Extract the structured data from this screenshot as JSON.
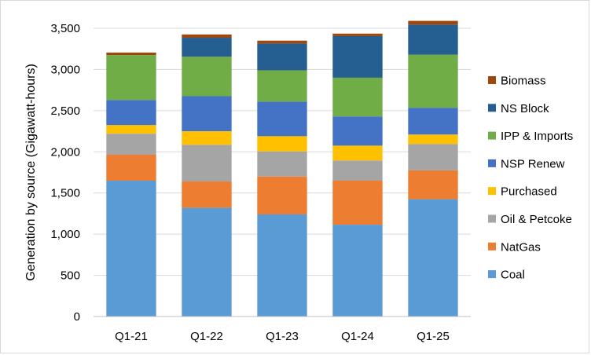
{
  "chart_data": {
    "type": "bar",
    "stacked": true,
    "title": "",
    "xlabel": "",
    "ylabel": "Generation by source (Gigawatt-hours)",
    "ylim": [
      0,
      3500
    ],
    "yticks": [
      0,
      500,
      1000,
      1500,
      2000,
      2500,
      3000,
      3500
    ],
    "ytick_labels": [
      "0",
      "500",
      "1,000",
      "1,500",
      "2,000",
      "2,500",
      "3,000",
      "3,500"
    ],
    "grid": true,
    "legend_position": "right",
    "categories": [
      "Q1-21",
      "Q1-22",
      "Q1-23",
      "Q1-24",
      "Q1-25"
    ],
    "series": [
      {
        "name": "Coal",
        "color": "#5B9BD5",
        "values": [
          1650,
          1320,
          1240,
          1115,
          1425
        ]
      },
      {
        "name": "NatGas",
        "color": "#ED7D31",
        "values": [
          315,
          320,
          460,
          535,
          350
        ]
      },
      {
        "name": "Oil & Petcoke",
        "color": "#A5A5A5",
        "values": [
          255,
          445,
          305,
          245,
          320
        ]
      },
      {
        "name": "Purchased",
        "color": "#FFC000",
        "values": [
          105,
          165,
          185,
          180,
          115
        ]
      },
      {
        "name": "NSP Renew",
        "color": "#4472C4",
        "values": [
          305,
          425,
          420,
          355,
          325
        ]
      },
      {
        "name": "IPP & Imports",
        "color": "#70AD47",
        "values": [
          545,
          480,
          380,
          470,
          645
        ]
      },
      {
        "name": "NS Block",
        "color": "#255E91",
        "values": [
          0,
          230,
          325,
          505,
          365
        ]
      },
      {
        "name": "Biomass",
        "color": "#9E480E",
        "values": [
          30,
          40,
          35,
          30,
          45
        ]
      }
    ]
  }
}
